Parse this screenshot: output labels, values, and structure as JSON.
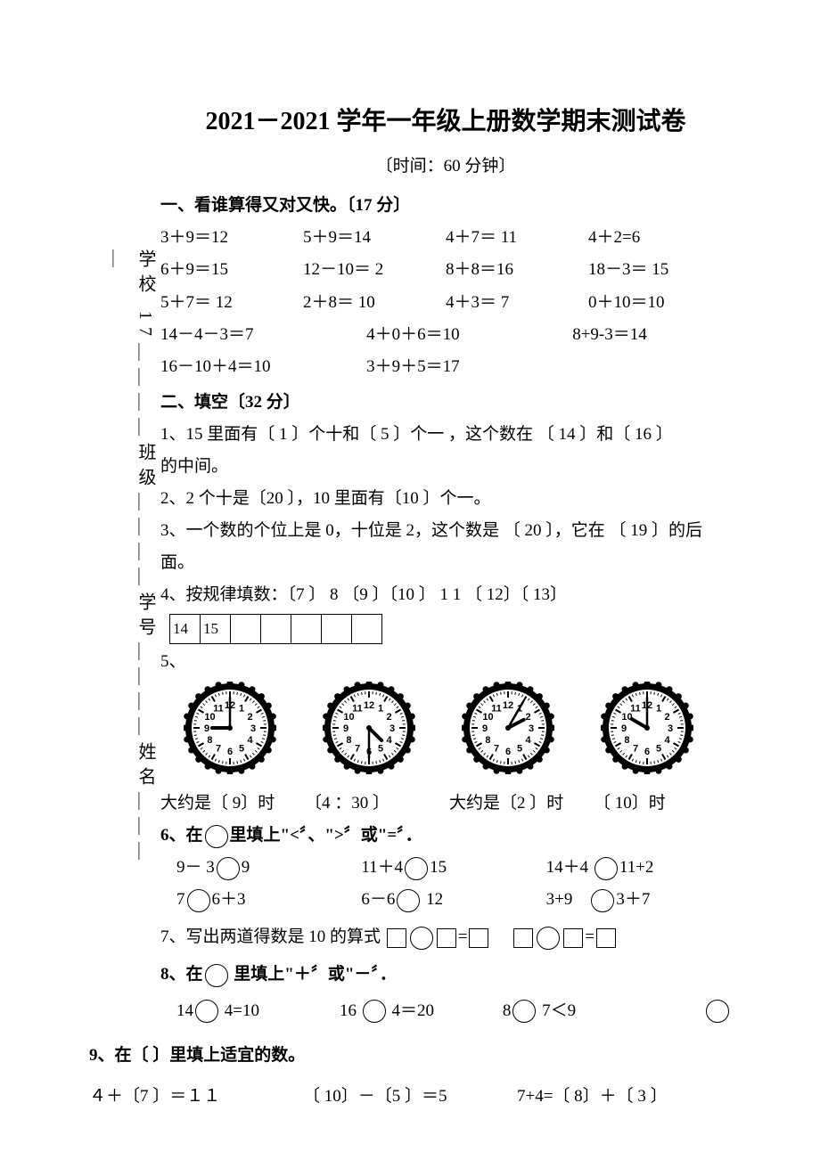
{
  "sidebar": {
    "text": "学校 17＿＿＿＿班级＿＿＿＿学号＿＿＿＿姓名＿＿＿＿"
  },
  "title": "2021－2021 学年一年级上册数学期末测试卷",
  "subtitle": "〔时间：60 分钟〕",
  "s1": {
    "head": "一、看谁算得又对又快。〔17 分〕",
    "r1": {
      "a": "3＋9＝12",
      "b": "5＋9＝14",
      "c": "4＋7＝ 11",
      "d": "4＋2=6"
    },
    "r2": {
      "a": "6＋9＝15",
      "b": "12－10＝ 2",
      "c": "8＋8＝16",
      "d": "18－3＝ 15"
    },
    "r3": {
      "a": "5＋7＝ 12",
      "b": "2＋8＝  10",
      "c": "4＋3＝ 7",
      "d": "0＋10＝10"
    },
    "r4": {
      "a": "14－4－3＝7",
      "b": "4＋0＋6＝10",
      "c": "8+9-3＝14"
    },
    "r5": {
      "a": "16－10＋4＝10",
      "b": "3＋9＋5＝17"
    }
  },
  "s2": {
    "head": "二、填空〔32 分〕",
    "q1a": "1、15 里面有〔 1  〕个十和〔 5  〕个一 ，这个数在 〔  14  〕和〔  16  〕",
    "q1b": "的中间。",
    "q2": "2、2 个十是〔20   〕，10 里面有〔10   〕个一。",
    "q3a": "3、一个数的个位上是 0，十位是 2，这个数是 〔  20  〕，它在 〔  19  〕的后",
    "q3b": "面。",
    "q4": "4、按规律填数：〔7  〕 8 〔9  〕〔10  〕 1 1 〔  12〕〔  13〕",
    "q4table": [
      "14",
      "15",
      "",
      "",
      "",
      "",
      ""
    ],
    "q5": "5、",
    "clocks": [
      {
        "h": 9,
        "m": 0
      },
      {
        "h": 4,
        "m": 30
      },
      {
        "h": 2,
        "m": 5
      },
      {
        "h": 10,
        "m": 0
      }
    ],
    "clock_labels": {
      "a": "大约是〔 9〕时",
      "b": "〔4 ：30 〕",
      "c": "大约是〔2  〕时",
      "d": "〔  10〕时"
    },
    "q6head": "6、在",
    "q6tail": "里填上\"<〞、\">〞或\"=〞．",
    "q6r1": {
      "a1": "9－ 3",
      "a2": "9",
      "b1": "11＋4",
      "b2": "15",
      "c1": "14＋4",
      "c2": "11+2"
    },
    "q6r2": {
      "a1": "7",
      "a2": "6＋3",
      "b1": "6－6",
      "b2": "12",
      "c1": "3+9",
      "c2": "3＋7"
    },
    "q7": "7、写出两道得数是 10 的算式",
    "q8head": "8、在",
    "q8tail": " 里填上\"＋〞或\"－〞．",
    "q8r": {
      "a1": "14",
      "a2": "4=10",
      "b1": "16",
      "b2": "4＝20",
      "c1": "8",
      "c2": "7＜9"
    },
    "q9head": "9、在〔  〕里填上适宜的数。",
    "q9r": {
      "a": "４＋〔7  〕＝１１",
      "b": "〔  10〕－〔5  〕＝5",
      "c": "7+4=〔  8〕＋〔 3  〕"
    }
  },
  "clock_style": {
    "size": 104,
    "outer_stroke": "#000000",
    "face_fill": "#ffffff",
    "dot_fill": "#000000",
    "number_font_size": 11
  }
}
